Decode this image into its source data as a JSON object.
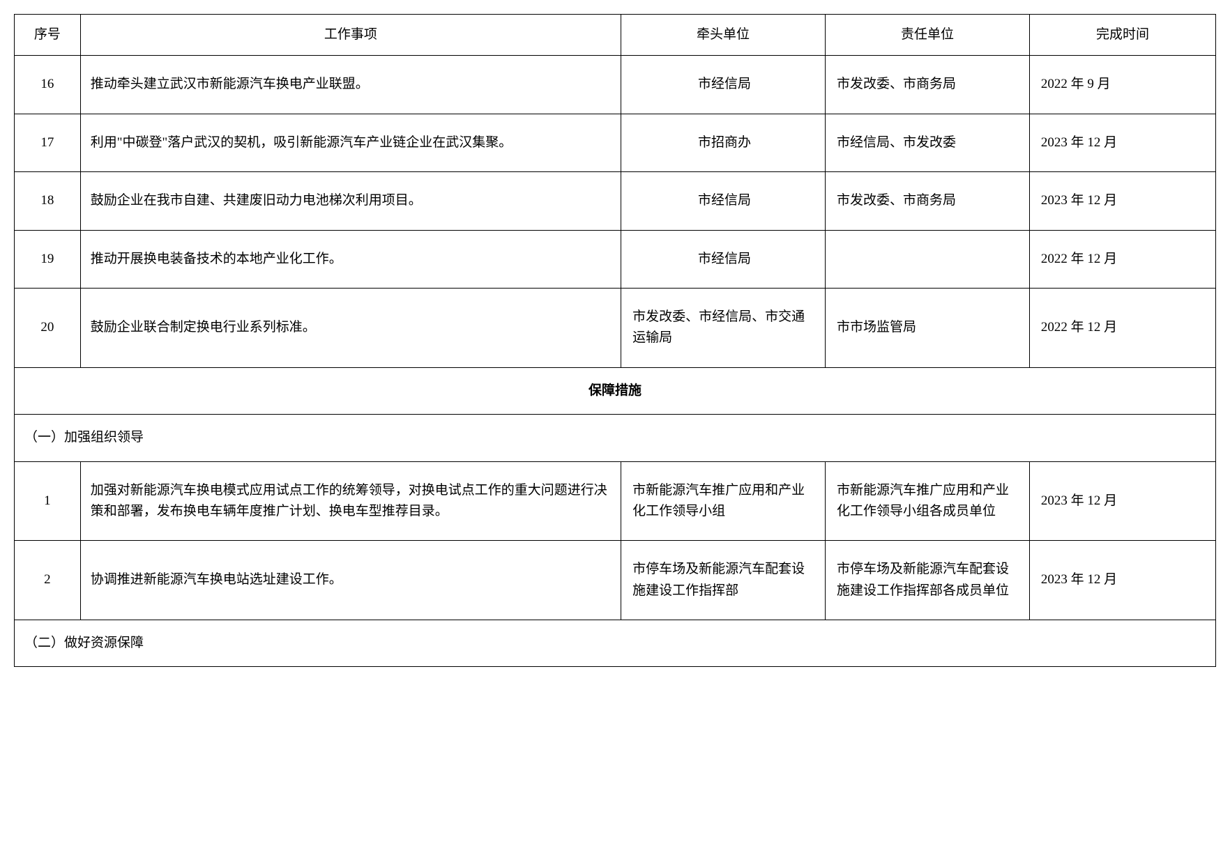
{
  "headers": {
    "seq": "序号",
    "task": "工作事项",
    "lead": "牵头单位",
    "resp": "责任单位",
    "date": "完成时间"
  },
  "rows": [
    {
      "seq": "16",
      "task": "推动牵头建立武汉市新能源汽车换电产业联盟。",
      "lead": "市经信局",
      "resp": "市发改委、市商务局",
      "date": "2022 年 9 月"
    },
    {
      "seq": "17",
      "task": "利用\"中碳登\"落户武汉的契机，吸引新能源汽车产业链企业在武汉集聚。",
      "lead": "市招商办",
      "resp": "市经信局、市发改委",
      "date": "2023 年 12 月"
    },
    {
      "seq": "18",
      "task": "鼓励企业在我市自建、共建废旧动力电池梯次利用项目。",
      "lead": "市经信局",
      "resp": "市发改委、市商务局",
      "date": "2023 年 12 月"
    },
    {
      "seq": "19",
      "task": "推动开展换电装备技术的本地产业化工作。",
      "lead": "市经信局",
      "resp": "",
      "date": "2022 年 12 月"
    },
    {
      "seq": "20",
      "task": "鼓励企业联合制定换电行业系列标准。",
      "lead": "市发改委、市经信局、市交通运输局",
      "resp": "市市场监管局",
      "date": "2022 年 12 月"
    }
  ],
  "sectionHeader": "保障措施",
  "subsection1": "（一）加强组织领导",
  "rows2": [
    {
      "seq": "1",
      "task": "加强对新能源汽车换电模式应用试点工作的统筹领导，对换电试点工作的重大问题进行决策和部署，发布换电车辆年度推广计划、换电车型推荐目录。",
      "lead": "市新能源汽车推广应用和产业化工作领导小组",
      "resp": "市新能源汽车推广应用和产业化工作领导小组各成员单位",
      "date": "2023 年 12 月"
    },
    {
      "seq": "2",
      "task": "协调推进新能源汽车换电站选址建设工作。",
      "lead": "市停车场及新能源汽车配套设施建设工作指挥部",
      "resp": "市停车场及新能源汽车配套设施建设工作指挥部各成员单位",
      "date": "2023 年 12 月"
    }
  ],
  "subsection2": "（二）做好资源保障",
  "styling": {
    "border_color": "#000000",
    "text_color": "#000000",
    "background_color": "#ffffff",
    "font_size": 19,
    "font_family": "SimSun",
    "col_widths_pct": [
      5.5,
      45,
      17,
      17,
      15.5
    ]
  }
}
